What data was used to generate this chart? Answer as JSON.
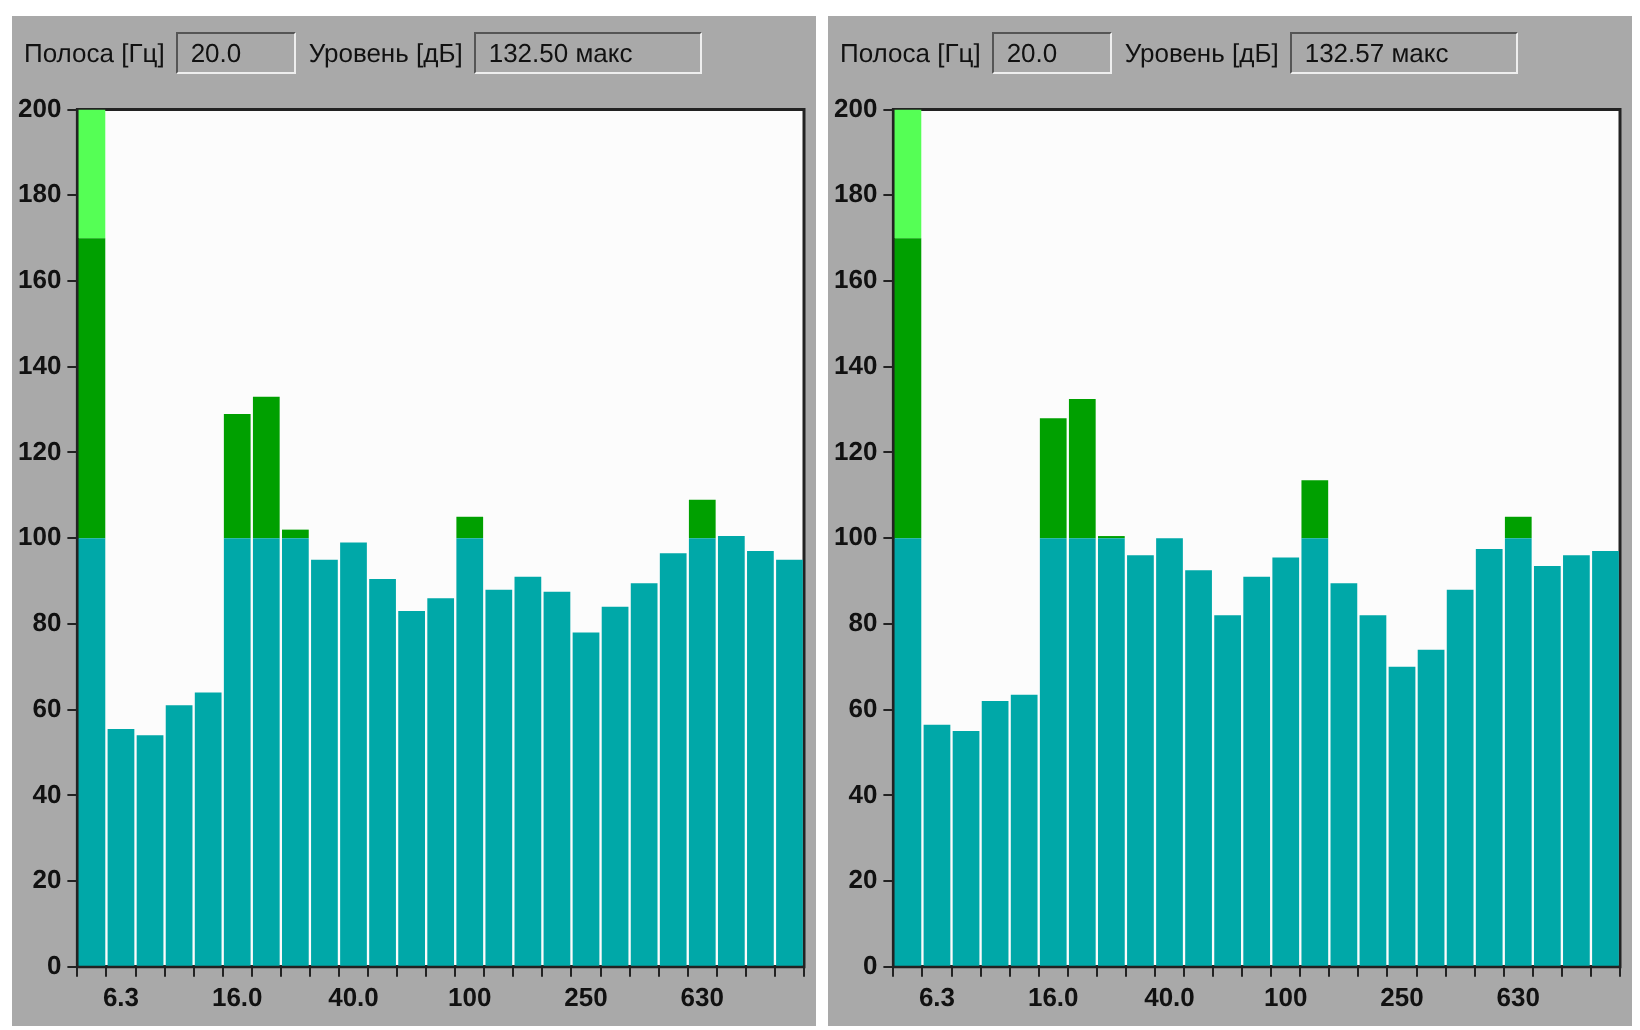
{
  "chart_data": [
    {
      "type": "bar",
      "stacked": true,
      "annotations": [
        "Полоса [Гц]",
        "20.0",
        "Уровень [дБ]",
        "132.50 макс"
      ],
      "categories": [
        null,
        "6.3",
        null,
        null,
        null,
        "16.0",
        null,
        null,
        null,
        "40.0",
        null,
        null,
        null,
        "100",
        null,
        null,
        null,
        "250",
        null,
        null,
        null,
        "630",
        null,
        null,
        null
      ],
      "series": [
        {
          "color": "#00a8a8",
          "values": [
            100,
            55.5,
            54,
            61,
            64,
            100,
            100,
            100,
            95,
            99,
            90.5,
            83,
            86,
            100,
            88,
            91,
            87.5,
            78,
            84,
            89.5,
            96.5,
            100,
            100.5,
            97,
            95
          ]
        },
        {
          "color": "#00a000",
          "values": [
            70,
            null,
            null,
            null,
            null,
            29,
            33,
            2,
            null,
            null,
            null,
            null,
            null,
            5,
            null,
            null,
            null,
            null,
            null,
            null,
            null,
            9,
            null,
            null,
            null
          ]
        },
        {
          "color": "#55ff55",
          "values": [
            30,
            null,
            null,
            null,
            null,
            null,
            null,
            null,
            null,
            null,
            null,
            null,
            null,
            null,
            null,
            null,
            null,
            null,
            null,
            null,
            null,
            null,
            null,
            null,
            null
          ]
        }
      ],
      "ylim": [
        0,
        200
      ],
      "yticks": [
        0,
        20,
        40,
        60,
        80,
        100,
        120,
        140,
        160,
        180,
        200
      ],
      "grid": false,
      "legend": false
    },
    {
      "type": "bar",
      "stacked": true,
      "annotations": [
        "Полоса [Гц]",
        "20.0",
        "Уровень [дБ]",
        "132.57 макс"
      ],
      "categories": [
        null,
        "6.3",
        null,
        null,
        null,
        "16.0",
        null,
        null,
        null,
        "40.0",
        null,
        null,
        null,
        "100",
        null,
        null,
        null,
        "250",
        null,
        null,
        null,
        "630",
        null,
        null,
        null
      ],
      "series": [
        {
          "color": "#00a8a8",
          "values": [
            100,
            56.5,
            55,
            62,
            63.5,
            100,
            100,
            100,
            96,
            100,
            92.5,
            82,
            91,
            95.5,
            100,
            89.5,
            82,
            70,
            74,
            88,
            97.5,
            100,
            93.5,
            96,
            97
          ]
        },
        {
          "color": "#00a000",
          "values": [
            70,
            null,
            null,
            null,
            null,
            28,
            32.5,
            0.5,
            null,
            null,
            null,
            null,
            null,
            null,
            13.5,
            null,
            null,
            null,
            null,
            null,
            null,
            5,
            null,
            null,
            null
          ]
        },
        {
          "color": "#55ff55",
          "values": [
            30,
            null,
            null,
            null,
            null,
            null,
            null,
            null,
            null,
            null,
            null,
            null,
            null,
            null,
            null,
            null,
            null,
            null,
            null,
            null,
            null,
            null,
            null,
            null,
            null
          ]
        }
      ],
      "ylim": [
        0,
        200
      ],
      "yticks": [
        0,
        20,
        40,
        60,
        80,
        100,
        120,
        140,
        160,
        180,
        200
      ],
      "grid": false,
      "legend": false
    }
  ]
}
